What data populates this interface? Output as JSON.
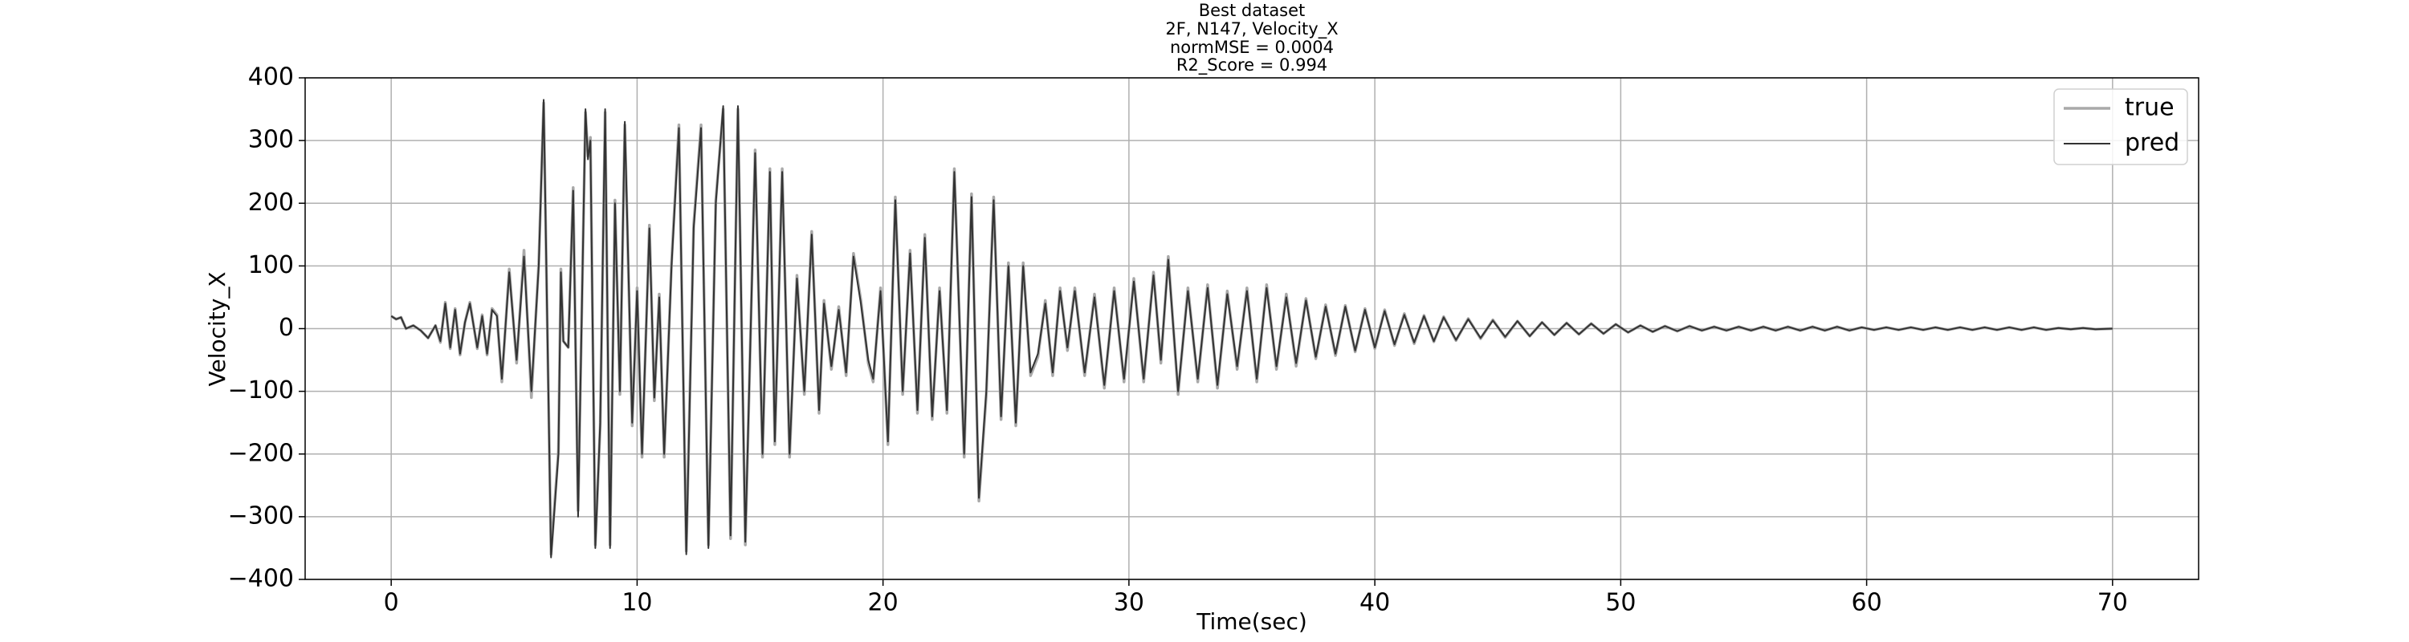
{
  "chart_data": {
    "type": "line",
    "title": [
      "Best dataset",
      "2F, N147, Velocity_X",
      "normMSE = 0.0004",
      "R2_Score = 0.994"
    ],
    "x_label": "Time(sec)",
    "y_label": "Velocity_X",
    "xlim": [
      -3.5,
      73.5
    ],
    "ylim": [
      -400,
      400
    ],
    "xticks": [
      0,
      10,
      20,
      30,
      40,
      50,
      60,
      70
    ],
    "yticks": [
      {
        "value": -400,
        "label": "−400"
      },
      {
        "value": -300,
        "label": "−300"
      },
      {
        "value": -200,
        "label": "−200"
      },
      {
        "value": -100,
        "label": "−100"
      },
      0,
      100,
      200,
      300,
      400
    ],
    "grid": true,
    "legend": "upper right",
    "x": [
      0,
      0.2,
      0.4,
      0.6,
      0.9,
      1.2,
      1.5,
      1.8,
      2.0,
      2.2,
      2.4,
      2.6,
      2.8,
      3.0,
      3.2,
      3.5,
      3.7,
      3.9,
      4.1,
      4.3,
      4.5,
      4.8,
      5.1,
      5.4,
      5.7,
      6.0,
      6.2,
      6.5,
      6.8,
      6.9,
      7.0,
      7.2,
      7.4,
      7.6,
      7.9,
      8.0,
      8.1,
      8.3,
      8.5,
      8.7,
      8.9,
      9.1,
      9.3,
      9.5,
      9.8,
      10.0,
      10.2,
      10.5,
      10.7,
      10.9,
      11.1,
      11.4,
      11.7,
      12.0,
      12.3,
      12.6,
      12.9,
      13.2,
      13.5,
      13.8,
      14.1,
      14.4,
      14.8,
      15.1,
      15.4,
      15.6,
      15.9,
      16.2,
      16.5,
      16.8,
      17.1,
      17.4,
      17.6,
      17.9,
      18.2,
      18.5,
      18.8,
      19.1,
      19.4,
      19.6,
      19.9,
      20.2,
      20.5,
      20.8,
      21.1,
      21.4,
      21.7,
      22.0,
      22.3,
      22.6,
      22.9,
      23.3,
      23.6,
      23.9,
      24.2,
      24.5,
      24.8,
      25.1,
      25.4,
      25.7,
      26.0,
      26.3,
      26.6,
      26.9,
      27.2,
      27.5,
      27.8,
      28.2,
      28.6,
      29.0,
      29.4,
      29.8,
      30.2,
      30.6,
      31.0,
      31.3,
      31.6,
      32.0,
      32.4,
      32.8,
      33.2,
      33.6,
      34.0,
      34.4,
      34.8,
      35.2,
      35.6,
      36.0,
      36.4,
      36.8,
      37.2,
      37.6,
      38.0,
      38.4,
      38.8,
      39.2,
      39.6,
      40.0,
      40.4,
      40.8,
      41.2,
      41.6,
      42.0,
      42.4,
      42.8,
      43.3,
      43.8,
      44.3,
      44.8,
      45.3,
      45.8,
      46.3,
      46.8,
      47.3,
      47.8,
      48.3,
      48.8,
      49.3,
      49.8,
      50.3,
      50.8,
      51.3,
      51.8,
      52.3,
      52.8,
      53.3,
      53.8,
      54.3,
      54.8,
      55.3,
      55.8,
      56.3,
      56.8,
      57.3,
      57.8,
      58.3,
      58.8,
      59.3,
      59.8,
      60.3,
      60.8,
      61.3,
      61.8,
      62.3,
      62.8,
      63.3,
      63.8,
      64.3,
      64.8,
      65.3,
      65.8,
      66.3,
      66.8,
      67.3,
      67.8,
      68.3,
      68.8,
      69.3,
      70.0
    ],
    "series": [
      {
        "name": "true",
        "color": "#a9a9a9",
        "values": [
          20,
          15,
          18,
          0,
          5,
          -3,
          -15,
          5,
          -22,
          42,
          -32,
          32,
          -42,
          10,
          42,
          -32,
          22,
          -42,
          32,
          22,
          -85,
          95,
          -55,
          125,
          -110,
          105,
          360,
          -360,
          -195,
          95,
          -20,
          -30,
          225,
          -290,
          345,
          275,
          305,
          -345,
          -155,
          345,
          -345,
          205,
          -105,
          325,
          -155,
          65,
          -205,
          165,
          -115,
          55,
          -205,
          105,
          325,
          -355,
          165,
          325,
          -345,
          205,
          350,
          -335,
          350,
          -345,
          285,
          -205,
          255,
          -185,
          255,
          -205,
          85,
          -105,
          155,
          -135,
          45,
          -65,
          35,
          -75,
          120,
          45,
          -55,
          -85,
          65,
          -185,
          210,
          -105,
          125,
          -135,
          150,
          -145,
          65,
          -135,
          255,
          -205,
          215,
          -275,
          -105,
          210,
          -145,
          105,
          -155,
          105,
          -75,
          -45,
          45,
          -75,
          65,
          -35,
          65,
          -75,
          55,
          -95,
          65,
          -85,
          80,
          -85,
          90,
          -55,
          115,
          -105,
          65,
          -85,
          70,
          -95,
          60,
          -65,
          65,
          -85,
          70,
          -65,
          55,
          -60,
          48,
          -48,
          38,
          -43,
          37,
          -37,
          32,
          -32,
          30,
          -27,
          24,
          -24,
          21,
          -21,
          19,
          -19,
          16,
          -16,
          14,
          -14,
          12,
          -12,
          10,
          -10,
          9,
          -9,
          8,
          -8,
          7,
          -6,
          5,
          -5,
          4,
          -4,
          4,
          -3,
          3,
          -3,
          3,
          -3,
          3,
          -3,
          3,
          -3,
          3,
          -3,
          3,
          -3,
          2,
          -2,
          2,
          -2,
          2,
          -2,
          2,
          -2,
          2,
          -2,
          2,
          -2,
          2,
          -2,
          2,
          -2,
          1,
          -1,
          1,
          -1,
          0
        ]
      },
      {
        "name": "pred",
        "color": "#333333",
        "values": [
          20,
          15,
          18,
          0,
          5,
          -3,
          -15,
          5,
          -20,
          40,
          -30,
          30,
          -40,
          10,
          40,
          -30,
          20,
          -40,
          30,
          20,
          -80,
          90,
          -50,
          115,
          -100,
          100,
          365,
          -365,
          -200,
          90,
          -20,
          -30,
          220,
          -300,
          350,
          270,
          300,
          -350,
          -150,
          350,
          -350,
          200,
          -100,
          330,
          -150,
          60,
          -200,
          160,
          -110,
          50,
          -200,
          100,
          320,
          -360,
          160,
          320,
          -350,
          200,
          355,
          -330,
          355,
          -340,
          280,
          -200,
          250,
          -180,
          250,
          -200,
          80,
          -100,
          150,
          -130,
          40,
          -60,
          30,
          -70,
          115,
          40,
          -50,
          -80,
          60,
          -180,
          205,
          -100,
          120,
          -130,
          145,
          -140,
          60,
          -130,
          250,
          -200,
          210,
          -270,
          -100,
          205,
          -140,
          100,
          -150,
          100,
          -70,
          -40,
          40,
          -70,
          60,
          -30,
          60,
          -70,
          50,
          -90,
          60,
          -80,
          75,
          -80,
          85,
          -50,
          110,
          -100,
          60,
          -80,
          65,
          -90,
          55,
          -60,
          60,
          -80,
          65,
          -60,
          50,
          -55,
          45,
          -45,
          35,
          -40,
          35,
          -35,
          30,
          -30,
          28,
          -25,
          22,
          -22,
          20,
          -20,
          18,
          -18,
          15,
          -15,
          13,
          -13,
          12,
          -12,
          10,
          -10,
          9,
          -9,
          8,
          -8,
          7,
          -6,
          5,
          -5,
          4,
          -4,
          4,
          -3,
          3,
          -3,
          3,
          -3,
          3,
          -3,
          3,
          -3,
          3,
          -3,
          3,
          -3,
          2,
          -2,
          2,
          -2,
          2,
          -2,
          2,
          -2,
          2,
          -2,
          2,
          -2,
          2,
          -2,
          2,
          -2,
          1,
          -1,
          1,
          -1,
          0
        ]
      }
    ]
  }
}
